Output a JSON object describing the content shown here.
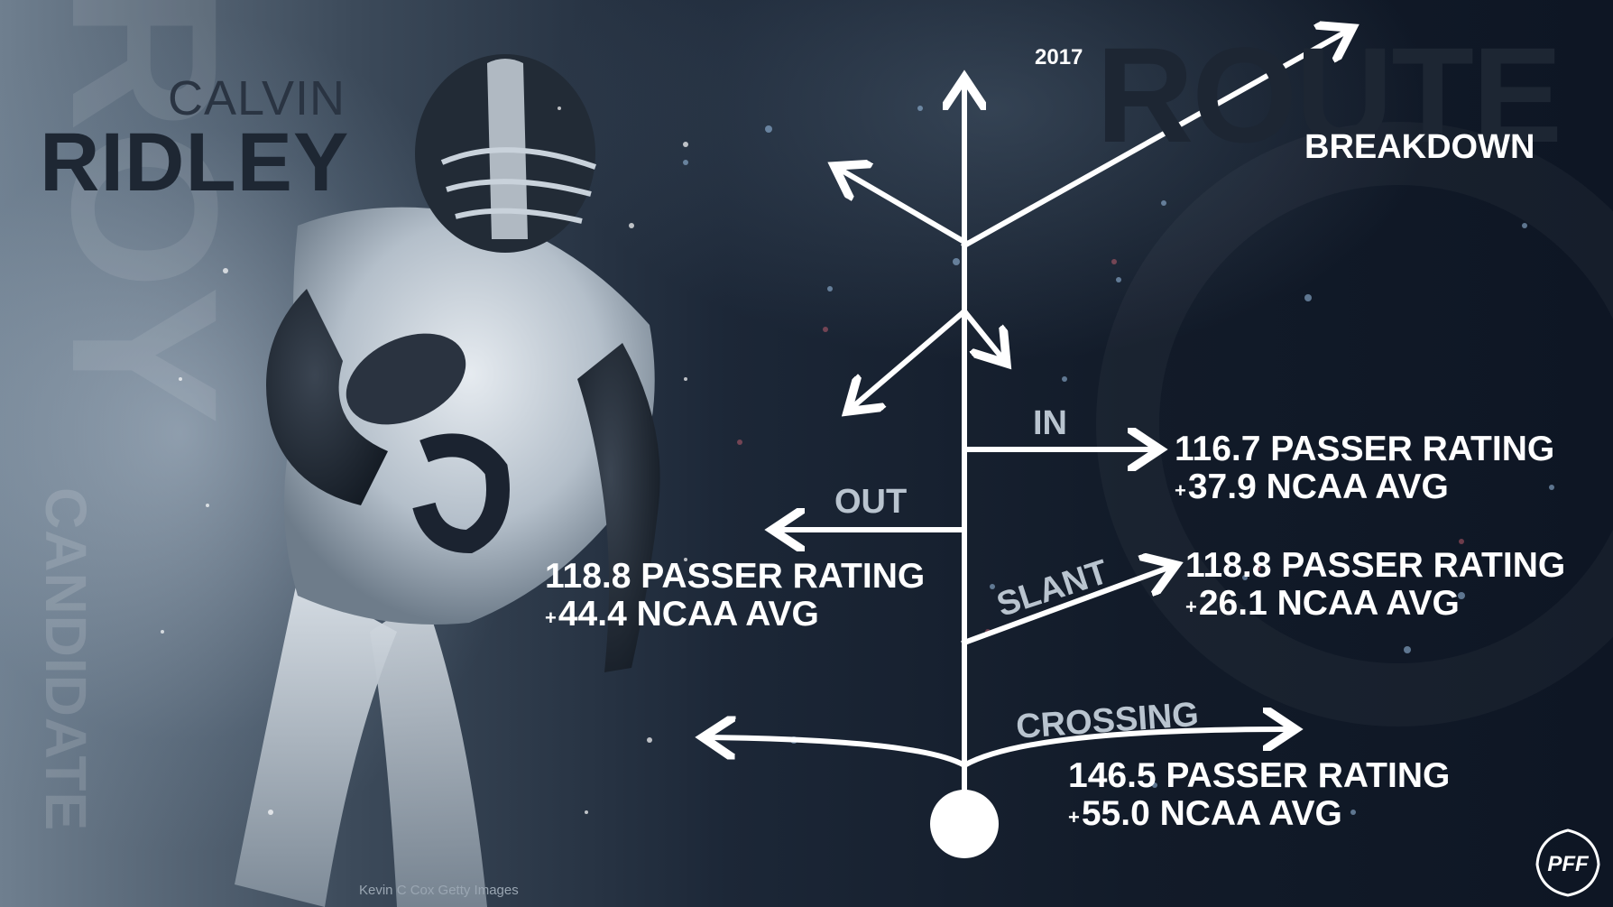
{
  "side_text": {
    "roy": "ROY",
    "candidate": "CANDIDATE"
  },
  "player": {
    "first_name": "CALVIN",
    "last_name": "RIDLEY"
  },
  "title": {
    "year": "2017",
    "main": "ROUTE",
    "sub": "BREAKDOWN"
  },
  "routes": {
    "in": {
      "label": "IN",
      "rating": "116.7 PASSER RATING",
      "plus": "+",
      "avg": "37.9 NCAA AVG"
    },
    "out": {
      "label": "OUT",
      "rating": "118.8 PASSER RATING",
      "plus": "+",
      "avg": "44.4 NCAA AVG"
    },
    "slant": {
      "label": "SLANT",
      "rating": "118.8 PASSER RATING",
      "plus": "+",
      "avg": "26.1 NCAA AVG"
    },
    "crossing": {
      "label": "CROSSING",
      "rating": "146.5 PASSER RATING",
      "plus": "+",
      "avg": "55.0 NCAA AVG"
    }
  },
  "photo_credit": "Kevin C Cox Getty Images",
  "logo_text": "PFF",
  "colors": {
    "accent": "#ffffff",
    "dark_title": "#1e2733",
    "label_grey": "#b9c4cf"
  }
}
